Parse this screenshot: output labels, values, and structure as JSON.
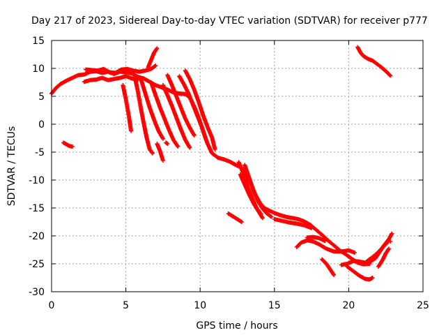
{
  "chart_data": {
    "type": "scatter",
    "title": "Day 217 of 2023, Sidereal Day-to-day VTEC variation (SDTVAR) for receiver p777",
    "xlabel": "GPS time / hours",
    "ylabel": "SDTVAR / TECUs",
    "xlim": [
      0,
      25
    ],
    "ylim": [
      -30,
      15
    ],
    "xticks": [
      0,
      5,
      10,
      15,
      20,
      25
    ],
    "yticks": [
      -30,
      -25,
      -20,
      -15,
      -10,
      -5,
      0,
      5,
      10,
      15
    ],
    "grid": true,
    "marker": "+",
    "color": "#ff0000",
    "segments": [
      {
        "name": "main-track",
        "points": [
          [
            0.0,
            5.5
          ],
          [
            0.3,
            6.5
          ],
          [
            0.6,
            7.2
          ],
          [
            1.0,
            7.8
          ],
          [
            1.4,
            8.3
          ],
          [
            1.8,
            8.8
          ],
          [
            2.2,
            8.9
          ],
          [
            2.6,
            9.4
          ],
          [
            3.0,
            9.5
          ],
          [
            3.4,
            9.2
          ],
          [
            3.8,
            9.4
          ],
          [
            4.2,
            9.0
          ],
          [
            4.6,
            9.4
          ],
          [
            5.0,
            9.3
          ],
          [
            5.4,
            9.1
          ],
          [
            5.8,
            8.5
          ],
          [
            6.2,
            8.2
          ],
          [
            6.6,
            7.6
          ],
          [
            7.0,
            7.0
          ],
          [
            7.4,
            6.6
          ],
          [
            7.8,
            6.2
          ],
          [
            8.2,
            5.7
          ],
          [
            8.6,
            5.5
          ],
          [
            9.0,
            5.4
          ],
          [
            9.3,
            4.8
          ],
          [
            9.6,
            3.2
          ],
          [
            9.9,
            1.2
          ],
          [
            10.2,
            -1.2
          ],
          [
            10.5,
            -3.5
          ],
          [
            10.8,
            -5.2
          ],
          [
            11.2,
            -6.0
          ],
          [
            11.6,
            -6.3
          ],
          [
            12.0,
            -6.7
          ],
          [
            12.4,
            -7.3
          ],
          [
            12.8,
            -7.8
          ],
          [
            13.1,
            -8.9
          ],
          [
            13.4,
            -10.5
          ],
          [
            13.7,
            -12.5
          ],
          [
            14.0,
            -14.0
          ],
          [
            14.3,
            -15.0
          ],
          [
            14.6,
            -15.4
          ],
          [
            15.0,
            -15.9
          ],
          [
            15.4,
            -16.3
          ],
          [
            15.8,
            -16.6
          ],
          [
            16.2,
            -16.8
          ],
          [
            16.6,
            -17.0
          ],
          [
            17.0,
            -17.4
          ],
          [
            17.4,
            -18.0
          ],
          [
            17.8,
            -18.9
          ],
          [
            18.2,
            -19.8
          ],
          [
            18.6,
            -20.8
          ],
          [
            19.0,
            -21.7
          ],
          [
            19.4,
            -22.6
          ],
          [
            19.8,
            -23.3
          ],
          [
            20.2,
            -24.1
          ],
          [
            20.6,
            -24.8
          ],
          [
            21.0,
            -25.1
          ],
          [
            21.4,
            -25.0
          ]
        ]
      },
      {
        "name": "main-track-upper",
        "points": [
          [
            2.3,
            9.8
          ],
          [
            2.7,
            9.7
          ],
          [
            3.1,
            9.6
          ],
          [
            3.5,
            9.9
          ],
          [
            3.9,
            9.3
          ],
          [
            4.3,
            9.2
          ],
          [
            4.7,
            9.8
          ],
          [
            5.1,
            9.9
          ],
          [
            5.5,
            9.6
          ],
          [
            5.9,
            9.4
          ],
          [
            6.3,
            9.6
          ],
          [
            6.7,
            9.9
          ],
          [
            7.0,
            10.5
          ]
        ]
      },
      {
        "name": "main-track-lower",
        "points": [
          [
            2.2,
            7.6
          ],
          [
            2.6,
            7.9
          ],
          [
            3.0,
            8.0
          ],
          [
            3.4,
            8.3
          ],
          [
            3.8,
            7.9
          ],
          [
            4.2,
            8.1
          ],
          [
            4.6,
            8.3
          ],
          [
            5.0,
            8.6
          ],
          [
            5.4,
            8.2
          ],
          [
            5.8,
            7.9
          ]
        ]
      },
      {
        "name": "arc-morning",
        "points": [
          [
            6.5,
            10.2
          ],
          [
            6.7,
            11.5
          ],
          [
            6.9,
            12.8
          ],
          [
            7.1,
            13.6
          ]
        ]
      },
      {
        "name": "arc-early",
        "points": [
          [
            0.8,
            -3.3
          ],
          [
            1.0,
            -3.6
          ],
          [
            1.2,
            -3.9
          ],
          [
            1.4,
            -4.0
          ]
        ]
      },
      {
        "name": "drop-a",
        "points": [
          [
            4.8,
            7.0
          ],
          [
            5.0,
            4.5
          ],
          [
            5.2,
            1.5
          ],
          [
            5.35,
            -1.2
          ]
        ]
      },
      {
        "name": "drop-b",
        "points": [
          [
            5.6,
            8.5
          ],
          [
            5.8,
            6.0
          ],
          [
            6.0,
            3.0
          ],
          [
            6.2,
            0.2
          ],
          [
            6.4,
            -2.4
          ],
          [
            6.6,
            -4.5
          ],
          [
            6.8,
            -5.2
          ]
        ]
      },
      {
        "name": "drop-c",
        "points": [
          [
            6.0,
            8.2
          ],
          [
            6.3,
            5.6
          ],
          [
            6.6,
            3.0
          ],
          [
            6.9,
            0.8
          ],
          [
            7.2,
            -1.2
          ],
          [
            7.5,
            -2.6
          ]
        ]
      },
      {
        "name": "drop-d",
        "points": [
          [
            6.7,
            7.5
          ],
          [
            7.0,
            5.2
          ],
          [
            7.3,
            3.0
          ],
          [
            7.6,
            1.0
          ],
          [
            7.9,
            -1.0
          ],
          [
            8.2,
            -2.8
          ],
          [
            8.5,
            -4.0
          ]
        ]
      },
      {
        "name": "drop-e",
        "points": [
          [
            7.5,
            7.0
          ],
          [
            7.8,
            5.2
          ],
          [
            8.1,
            3.3
          ],
          [
            8.4,
            1.2
          ],
          [
            8.7,
            -0.9
          ],
          [
            9.0,
            -2.8
          ],
          [
            9.3,
            -4.2
          ]
        ]
      },
      {
        "name": "drop-f",
        "points": [
          [
            7.8,
            8.8
          ],
          [
            8.1,
            7.0
          ],
          [
            8.4,
            5.0
          ],
          [
            8.7,
            3.0
          ],
          [
            9.0,
            1.0
          ],
          [
            9.3,
            -0.6
          ],
          [
            9.6,
            -2.0
          ]
        ]
      },
      {
        "name": "drop-g",
        "points": [
          [
            8.6,
            8.6
          ],
          [
            8.9,
            7.2
          ],
          [
            9.2,
            5.6
          ],
          [
            9.5,
            3.6
          ],
          [
            9.8,
            1.6
          ],
          [
            10.1,
            -0.4
          ],
          [
            10.4,
            -2.8
          ]
        ]
      },
      {
        "name": "drop-h",
        "points": [
          [
            9.0,
            9.6
          ],
          [
            9.3,
            8.1
          ],
          [
            9.6,
            6.2
          ],
          [
            9.9,
            4.0
          ],
          [
            10.2,
            1.6
          ],
          [
            10.5,
            -0.5
          ],
          [
            10.8,
            -2.4
          ],
          [
            11.0,
            -4.5
          ]
        ]
      },
      {
        "name": "drop-i",
        "points": [
          [
            7.1,
            -3.5
          ],
          [
            7.3,
            -4.8
          ],
          [
            7.5,
            -6.5
          ]
        ]
      },
      {
        "name": "dot-j",
        "points": [
          [
            7.7,
            -3.3
          ],
          [
            7.8,
            -3.5
          ]
        ]
      },
      {
        "name": "drop-k",
        "points": [
          [
            12.6,
            -6.8
          ],
          [
            12.9,
            -8.8
          ],
          [
            13.2,
            -11.2
          ],
          [
            13.5,
            -13.2
          ],
          [
            13.8,
            -15.0
          ],
          [
            14.1,
            -16.1
          ]
        ]
      },
      {
        "name": "drop-l",
        "points": [
          [
            13.0,
            -7.3
          ],
          [
            13.3,
            -9.6
          ],
          [
            13.6,
            -12.0
          ],
          [
            13.9,
            -13.8
          ],
          [
            14.2,
            -15.1
          ],
          [
            14.5,
            -16.0
          ],
          [
            14.8,
            -16.6
          ]
        ]
      },
      {
        "name": "drop-m",
        "points": [
          [
            12.7,
            -9.0
          ],
          [
            13.0,
            -10.8
          ],
          [
            13.3,
            -12.6
          ],
          [
            13.6,
            -14.2
          ],
          [
            13.9,
            -15.5
          ],
          [
            14.2,
            -16.8
          ]
        ]
      },
      {
        "name": "arc-n",
        "points": [
          [
            11.9,
            -16.0
          ],
          [
            12.2,
            -16.5
          ],
          [
            12.5,
            -17.0
          ],
          [
            12.8,
            -17.5
          ]
        ]
      },
      {
        "name": "band-o",
        "points": [
          [
            15.0,
            -17.0
          ],
          [
            15.5,
            -17.3
          ],
          [
            16.0,
            -17.6
          ],
          [
            16.5,
            -17.8
          ],
          [
            17.0,
            -18.1
          ],
          [
            17.5,
            -18.6
          ]
        ]
      },
      {
        "name": "arc-p",
        "points": [
          [
            16.5,
            -22.0
          ],
          [
            16.8,
            -21.2
          ],
          [
            17.2,
            -20.8
          ],
          [
            17.6,
            -21.0
          ],
          [
            18.0,
            -21.5
          ],
          [
            18.5,
            -22.3
          ],
          [
            19.0,
            -22.8
          ],
          [
            19.5,
            -22.8
          ],
          [
            20.0,
            -22.6
          ],
          [
            20.4,
            -23.0
          ]
        ]
      },
      {
        "name": "arc-q",
        "points": [
          [
            17.2,
            -20.3
          ],
          [
            17.6,
            -20.2
          ],
          [
            18.0,
            -20.4
          ],
          [
            18.4,
            -20.9
          ]
        ]
      },
      {
        "name": "drop-r",
        "points": [
          [
            18.2,
            -24.2
          ],
          [
            18.5,
            -25.0
          ],
          [
            18.8,
            -26.2
          ],
          [
            19.0,
            -27.0
          ]
        ]
      },
      {
        "name": "arc-s",
        "points": [
          [
            19.9,
            -25.5
          ],
          [
            20.3,
            -26.3
          ],
          [
            20.7,
            -27.1
          ],
          [
            21.1,
            -27.7
          ],
          [
            21.4,
            -27.8
          ],
          [
            21.6,
            -27.5
          ]
        ]
      },
      {
        "name": "arc-t",
        "points": [
          [
            19.5,
            -25.2
          ],
          [
            19.9,
            -25.0
          ],
          [
            20.3,
            -24.5
          ],
          [
            20.7,
            -24.6
          ],
          [
            21.1,
            -24.8
          ],
          [
            21.5,
            -24.5
          ],
          [
            21.8,
            -24.0
          ],
          [
            22.1,
            -22.8
          ],
          [
            22.4,
            -21.6
          ],
          [
            22.7,
            -20.6
          ],
          [
            22.9,
            -19.6
          ]
        ]
      },
      {
        "name": "arc-u",
        "points": [
          [
            21.2,
            -24.6
          ],
          [
            21.6,
            -23.8
          ],
          [
            22.0,
            -22.9
          ],
          [
            22.3,
            -22.0
          ],
          [
            22.6,
            -21.2
          ]
        ]
      },
      {
        "name": "drop-v",
        "points": [
          [
            22.0,
            -25.5
          ],
          [
            22.3,
            -24.2
          ],
          [
            22.5,
            -23.1
          ],
          [
            22.7,
            -22.3
          ]
        ]
      },
      {
        "name": "dot-w",
        "points": [
          [
            22.8,
            -21.0
          ]
        ]
      },
      {
        "name": "arc-late",
        "points": [
          [
            20.6,
            13.8
          ],
          [
            20.8,
            12.8
          ],
          [
            21.0,
            12.2
          ],
          [
            21.3,
            11.7
          ],
          [
            21.6,
            11.4
          ],
          [
            21.9,
            10.8
          ],
          [
            22.2,
            10.2
          ],
          [
            22.5,
            9.5
          ],
          [
            22.8,
            8.7
          ]
        ]
      }
    ]
  }
}
